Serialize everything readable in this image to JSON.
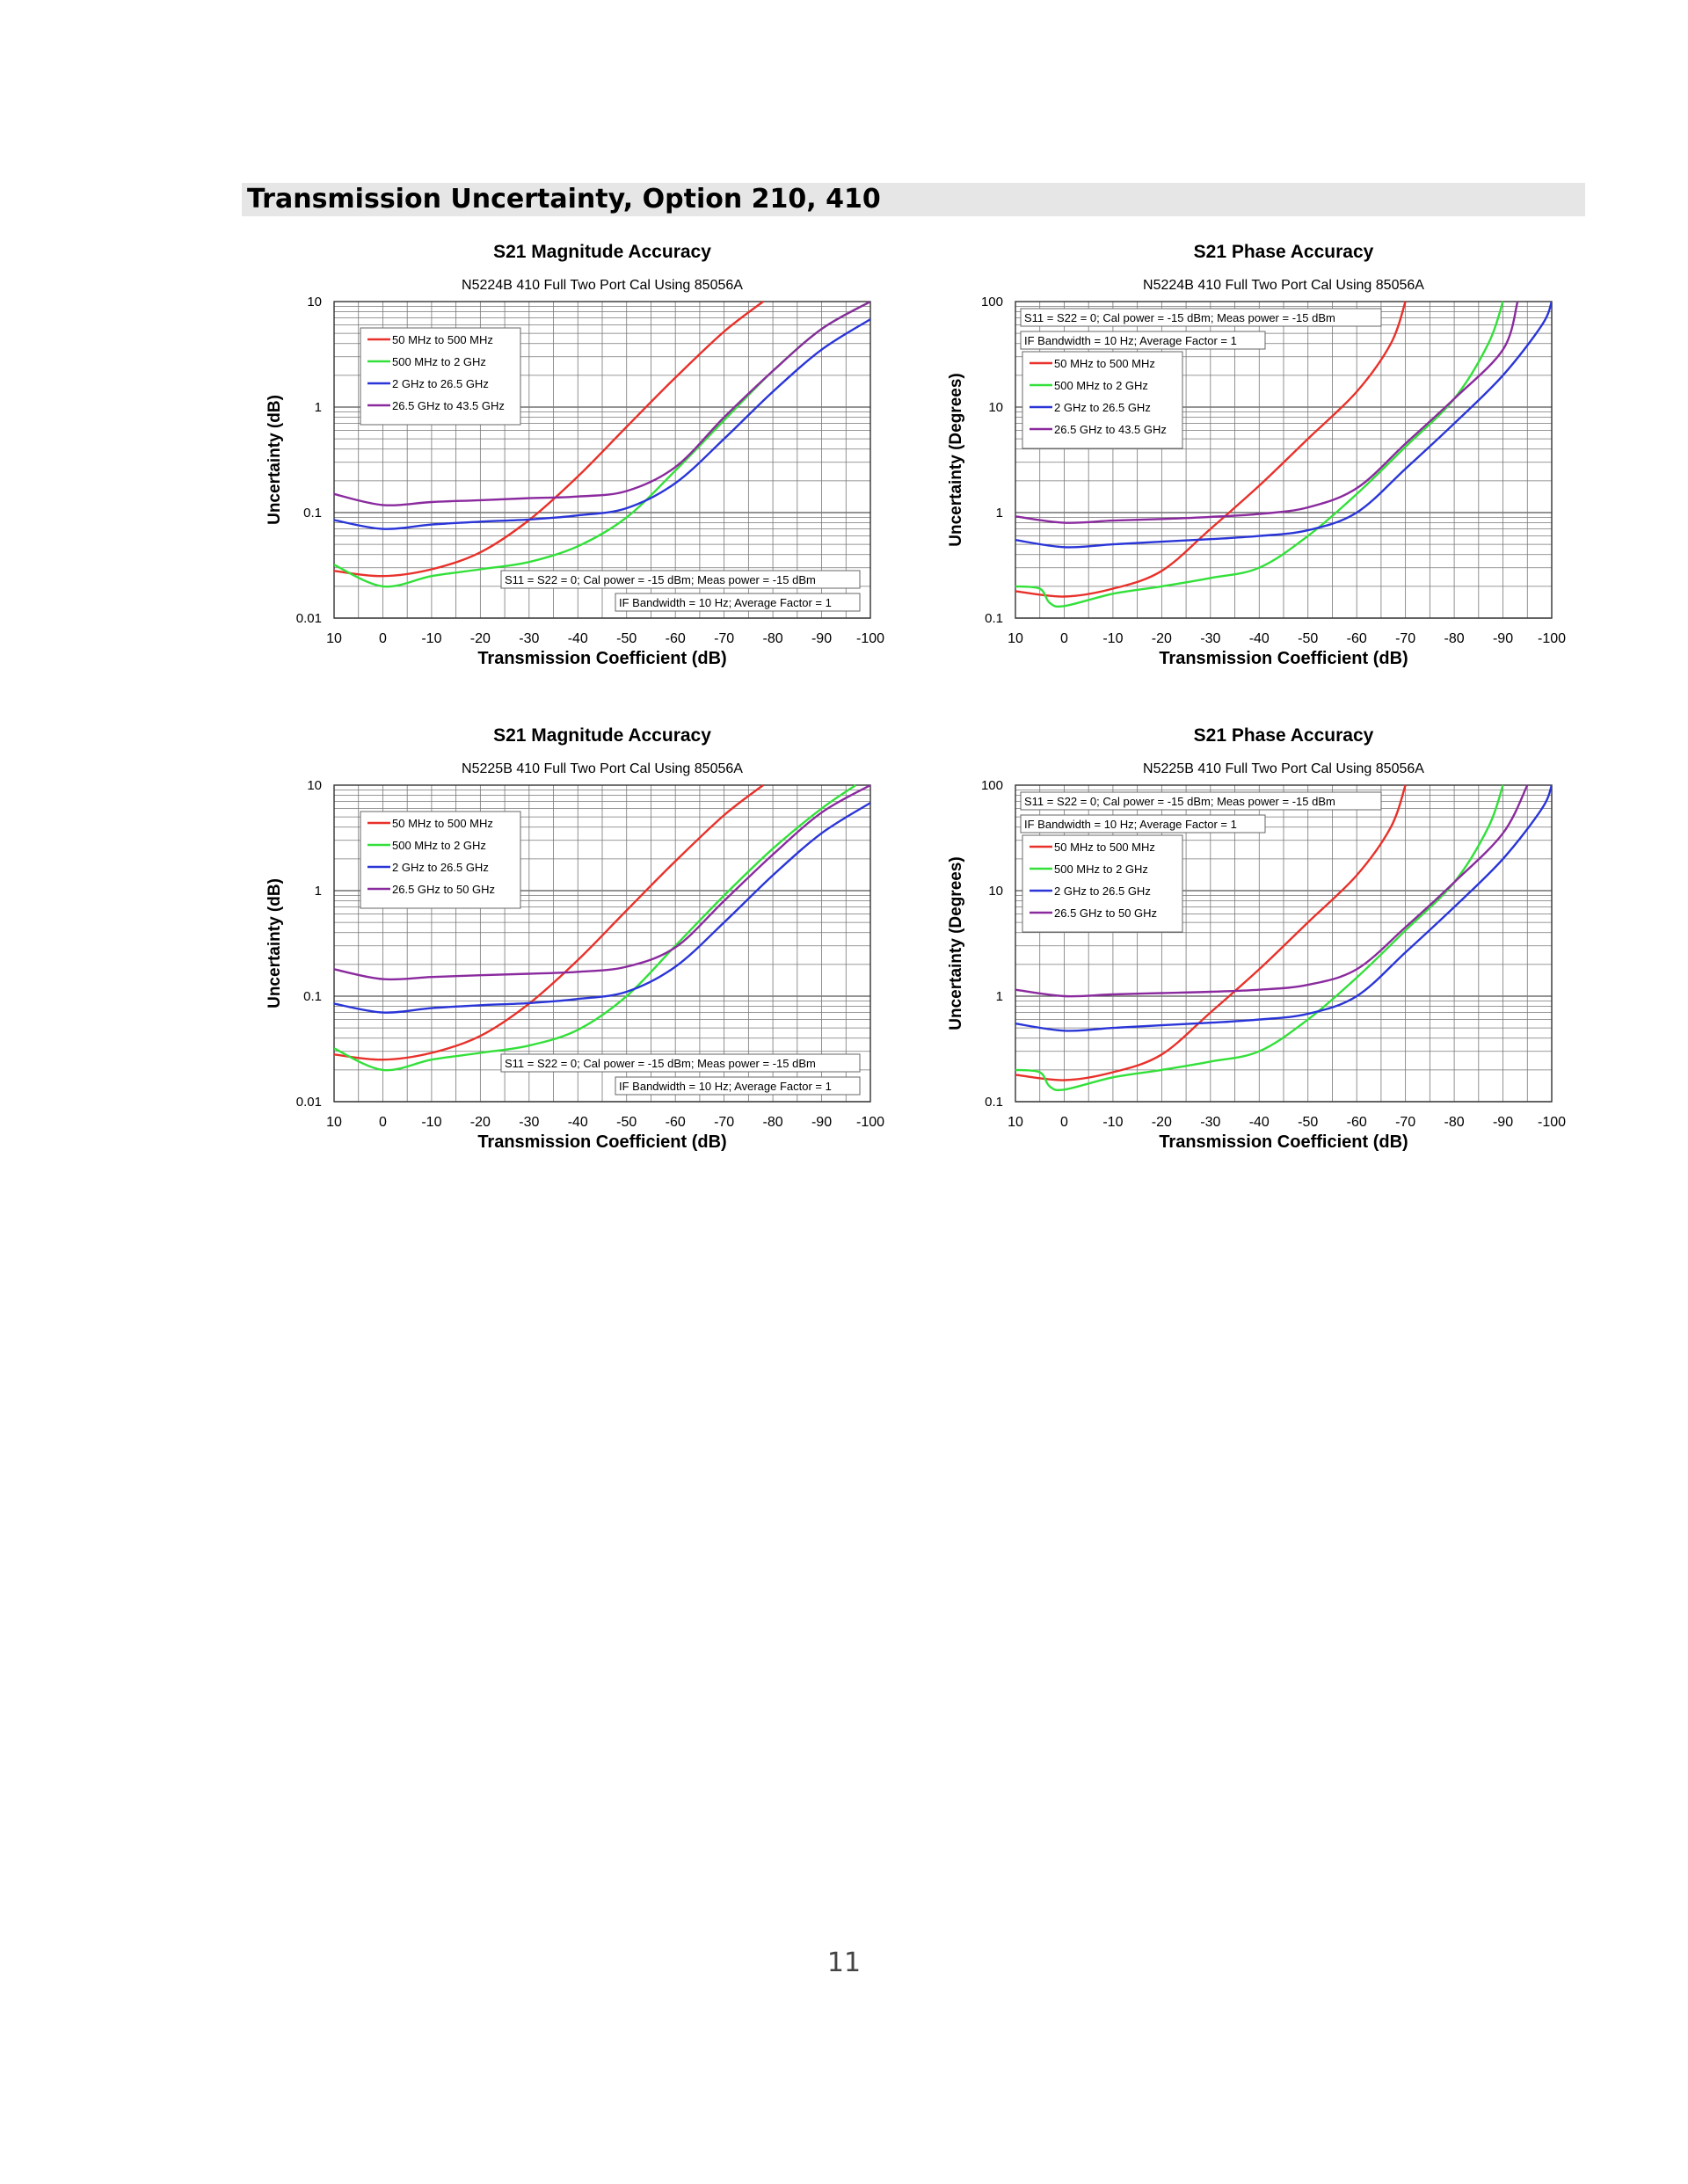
{
  "section_title": "Transmission Uncertainty, Option 210, 410",
  "page_number": "11",
  "chart_data": [
    {
      "type": "line",
      "title": "S21 Magnitude Accuracy",
      "subtitle": "N5224B 410 Full Two Port Cal Using 85056A",
      "xlabel": "Transmission Coefficient (dB)",
      "ylabel": "Uncertainty (dB)",
      "xlim": [
        10,
        -100
      ],
      "ylim": [
        0.01,
        10
      ],
      "yscale": "log",
      "x_ticks": [
        "10",
        "0",
        "-10",
        "-20",
        "-30",
        "-40",
        "-50",
        "-60",
        "-70",
        "-80",
        "-90",
        "-100"
      ],
      "y_ticks": [
        "10",
        "1",
        "0.1",
        "0.01"
      ],
      "grid": true,
      "legend_position": "top-left",
      "notes_position": "bottom-right",
      "notes": [
        "S11 = S22 = 0; Cal power = -15 dBm; Meas power = -15 dBm",
        "IF Bandwidth = 10 Hz; Average Factor = 1"
      ],
      "series": [
        {
          "name": "50 MHz to 500 MHz",
          "color": "#e8312a",
          "points": [
            [
              10,
              0.028
            ],
            [
              0,
              0.025
            ],
            [
              -10,
              0.029
            ],
            [
              -20,
              0.042
            ],
            [
              -30,
              0.085
            ],
            [
              -40,
              0.22
            ],
            [
              -50,
              0.65
            ],
            [
              -60,
              1.9
            ],
            [
              -70,
              5.2
            ],
            [
              -78,
              10
            ]
          ]
        },
        {
          "name": "500 MHz to 2 GHz",
          "color": "#33e03a",
          "points": [
            [
              10,
              0.032
            ],
            [
              0,
              0.02
            ],
            [
              -10,
              0.025
            ],
            [
              -20,
              0.029
            ],
            [
              -30,
              0.034
            ],
            [
              -40,
              0.048
            ],
            [
              -50,
              0.09
            ],
            [
              -60,
              0.25
            ],
            [
              -70,
              0.75
            ],
            [
              -80,
              2.2
            ],
            [
              -90,
              5.5
            ],
            [
              -100,
              10
            ]
          ]
        },
        {
          "name": "2 GHz to 26.5 GHz",
          "color": "#2a35d8",
          "points": [
            [
              10,
              0.085
            ],
            [
              0,
              0.07
            ],
            [
              -10,
              0.077
            ],
            [
              -20,
              0.082
            ],
            [
              -30,
              0.086
            ],
            [
              -40,
              0.094
            ],
            [
              -50,
              0.11
            ],
            [
              -60,
              0.19
            ],
            [
              -70,
              0.5
            ],
            [
              -80,
              1.4
            ],
            [
              -90,
              3.5
            ],
            [
              -100,
              6.8
            ]
          ]
        },
        {
          "name": "26.5 GHz to 43.5 GHz",
          "color": "#8a2a9e",
          "points": [
            [
              10,
              0.15
            ],
            [
              0,
              0.118
            ],
            [
              -10,
              0.126
            ],
            [
              -20,
              0.131
            ],
            [
              -30,
              0.137
            ],
            [
              -40,
              0.142
            ],
            [
              -50,
              0.16
            ],
            [
              -60,
              0.27
            ],
            [
              -70,
              0.8
            ],
            [
              -80,
              2.2
            ],
            [
              -90,
              5.5
            ],
            [
              -100,
              10
            ]
          ]
        }
      ]
    },
    {
      "type": "line",
      "title": "S21 Phase Accuracy",
      "subtitle": "N5224B 410 Full Two Port Cal Using 85056A",
      "xlabel": "Transmission Coefficient (dB)",
      "ylabel": "Uncertainty (Degrees)",
      "xlim": [
        10,
        -100
      ],
      "ylim": [
        0.1,
        100
      ],
      "yscale": "log",
      "x_ticks": [
        "10",
        "0",
        "-10",
        "-20",
        "-30",
        "-40",
        "-50",
        "-60",
        "-70",
        "-80",
        "-90",
        "-100"
      ],
      "y_ticks": [
        "100",
        "10",
        "1",
        "0.1"
      ],
      "grid": true,
      "legend_position": "top-left",
      "notes_position": "top-left",
      "notes": [
        "S11 = S22 = 0; Cal power = -15 dBm; Meas power = -15 dBm",
        "IF Bandwidth = 10 Hz; Average Factor = 1"
      ],
      "series": [
        {
          "name": "50 MHz to 500 MHz",
          "color": "#e8312a",
          "points": [
            [
              10,
              0.18
            ],
            [
              0,
              0.16
            ],
            [
              -10,
              0.19
            ],
            [
              -20,
              0.28
            ],
            [
              -30,
              0.7
            ],
            [
              -40,
              1.8
            ],
            [
              -50,
              5
            ],
            [
              -60,
              14
            ],
            [
              -67,
              40
            ],
            [
              -70,
              100
            ]
          ]
        },
        {
          "name": "500 MHz to 2 GHz",
          "color": "#33e03a",
          "points": [
            [
              10,
              0.2
            ],
            [
              5,
              0.19
            ],
            [
              3,
              0.14
            ],
            [
              0,
              0.13
            ],
            [
              -10,
              0.17
            ],
            [
              -20,
              0.2
            ],
            [
              -30,
              0.24
            ],
            [
              -40,
              0.3
            ],
            [
              -50,
              0.6
            ],
            [
              -60,
              1.5
            ],
            [
              -70,
              4.2
            ],
            [
              -80,
              12
            ],
            [
              -87,
              40
            ],
            [
              -90,
              100
            ]
          ]
        },
        {
          "name": "2 GHz to 26.5 GHz",
          "color": "#2a35d8",
          "points": [
            [
              10,
              0.55
            ],
            [
              0,
              0.47
            ],
            [
              -10,
              0.5
            ],
            [
              -20,
              0.53
            ],
            [
              -30,
              0.56
            ],
            [
              -40,
              0.6
            ],
            [
              -50,
              0.68
            ],
            [
              -60,
              1
            ],
            [
              -70,
              2.6
            ],
            [
              -80,
              7
            ],
            [
              -90,
              20
            ],
            [
              -98,
              60
            ],
            [
              -100,
              100
            ]
          ]
        },
        {
          "name": "26.5 GHz to 43.5 GHz",
          "color": "#8a2a9e",
          "points": [
            [
              10,
              0.92
            ],
            [
              0,
              0.8
            ],
            [
              -10,
              0.84
            ],
            [
              -20,
              0.87
            ],
            [
              -30,
              0.91
            ],
            [
              -40,
              0.97
            ],
            [
              -50,
              1.12
            ],
            [
              -60,
              1.7
            ],
            [
              -70,
              4.5
            ],
            [
              -80,
              12
            ],
            [
              -90,
              35
            ],
            [
              -93,
              100
            ]
          ]
        }
      ]
    },
    {
      "type": "line",
      "title": "S21 Magnitude Accuracy",
      "subtitle": "N5225B 410 Full Two Port Cal Using 85056A",
      "xlabel": "Transmission Coefficient (dB)",
      "ylabel": "Uncertainty (dB)",
      "xlim": [
        10,
        -100
      ],
      "ylim": [
        0.01,
        10
      ],
      "yscale": "log",
      "x_ticks": [
        "10",
        "0",
        "-10",
        "-20",
        "-30",
        "-40",
        "-50",
        "-60",
        "-70",
        "-80",
        "-90",
        "-100"
      ],
      "y_ticks": [
        "10",
        "1",
        "0.1",
        "0.01"
      ],
      "grid": true,
      "legend_position": "top-left",
      "notes_position": "bottom-right",
      "notes": [
        "S11 = S22 = 0; Cal power = -15 dBm; Meas power = -15 dBm",
        "IF Bandwidth = 10 Hz; Average Factor = 1"
      ],
      "series": [
        {
          "name": "50 MHz to 500 MHz",
          "color": "#e8312a",
          "points": [
            [
              10,
              0.028
            ],
            [
              0,
              0.025
            ],
            [
              -10,
              0.029
            ],
            [
              -20,
              0.042
            ],
            [
              -30,
              0.085
            ],
            [
              -40,
              0.22
            ],
            [
              -50,
              0.65
            ],
            [
              -60,
              1.9
            ],
            [
              -70,
              5.2
            ],
            [
              -78,
              10
            ]
          ]
        },
        {
          "name": "500 MHz to 2 GHz",
          "color": "#33e03a",
          "points": [
            [
              10,
              0.032
            ],
            [
              0,
              0.02
            ],
            [
              -10,
              0.025
            ],
            [
              -20,
              0.029
            ],
            [
              -30,
              0.034
            ],
            [
              -40,
              0.048
            ],
            [
              -50,
              0.1
            ],
            [
              -60,
              0.3
            ],
            [
              -70,
              0.9
            ],
            [
              -80,
              2.5
            ],
            [
              -90,
              6
            ],
            [
              -97,
              10
            ]
          ]
        },
        {
          "name": "2 GHz to 26.5 GHz",
          "color": "#2a35d8",
          "points": [
            [
              10,
              0.085
            ],
            [
              0,
              0.07
            ],
            [
              -10,
              0.077
            ],
            [
              -20,
              0.082
            ],
            [
              -30,
              0.086
            ],
            [
              -40,
              0.094
            ],
            [
              -50,
              0.11
            ],
            [
              -60,
              0.19
            ],
            [
              -70,
              0.5
            ],
            [
              -80,
              1.4
            ],
            [
              -90,
              3.5
            ],
            [
              -100,
              6.8
            ]
          ]
        },
        {
          "name": "26.5 GHz to 50 GHz",
          "color": "#8a2a9e",
          "points": [
            [
              10,
              0.18
            ],
            [
              0,
              0.145
            ],
            [
              -10,
              0.152
            ],
            [
              -20,
              0.158
            ],
            [
              -30,
              0.163
            ],
            [
              -40,
              0.17
            ],
            [
              -50,
              0.19
            ],
            [
              -60,
              0.29
            ],
            [
              -70,
              0.8
            ],
            [
              -80,
              2.2
            ],
            [
              -90,
              5.5
            ],
            [
              -100,
              10
            ]
          ]
        }
      ]
    },
    {
      "type": "line",
      "title": "S21 Phase Accuracy",
      "subtitle": "N5225B 410 Full Two Port Cal Using 85056A",
      "xlabel": "Transmission Coefficient (dB)",
      "ylabel": "Uncertainty (Degrees)",
      "xlim": [
        10,
        -100
      ],
      "ylim": [
        0.1,
        100
      ],
      "yscale": "log",
      "x_ticks": [
        "10",
        "0",
        "-10",
        "-20",
        "-30",
        "-40",
        "-50",
        "-60",
        "-70",
        "-80",
        "-90",
        "-100"
      ],
      "y_ticks": [
        "100",
        "10",
        "1",
        "0.1"
      ],
      "grid": true,
      "legend_position": "top-left",
      "notes_position": "top-left",
      "notes": [
        "S11 = S22 = 0; Cal power = -15 dBm; Meas power = -15 dBm",
        "IF Bandwidth = 10 Hz; Average Factor = 1"
      ],
      "series": [
        {
          "name": "50 MHz to 500 MHz",
          "color": "#e8312a",
          "points": [
            [
              10,
              0.18
            ],
            [
              0,
              0.16
            ],
            [
              -10,
              0.19
            ],
            [
              -20,
              0.28
            ],
            [
              -30,
              0.7
            ],
            [
              -40,
              1.8
            ],
            [
              -50,
              5
            ],
            [
              -60,
              14
            ],
            [
              -67,
              40
            ],
            [
              -70,
              100
            ]
          ]
        },
        {
          "name": "500 MHz to 2 GHz",
          "color": "#33e03a",
          "points": [
            [
              10,
              0.2
            ],
            [
              5,
              0.19
            ],
            [
              3,
              0.14
            ],
            [
              0,
              0.13
            ],
            [
              -10,
              0.17
            ],
            [
              -20,
              0.2
            ],
            [
              -30,
              0.24
            ],
            [
              -40,
              0.3
            ],
            [
              -50,
              0.6
            ],
            [
              -60,
              1.5
            ],
            [
              -70,
              4.2
            ],
            [
              -80,
              12
            ],
            [
              -87,
              40
            ],
            [
              -90,
              100
            ]
          ]
        },
        {
          "name": "2 GHz to 26.5 GHz",
          "color": "#2a35d8",
          "points": [
            [
              10,
              0.55
            ],
            [
              0,
              0.47
            ],
            [
              -10,
              0.5
            ],
            [
              -20,
              0.53
            ],
            [
              -30,
              0.56
            ],
            [
              -40,
              0.6
            ],
            [
              -50,
              0.68
            ],
            [
              -60,
              1
            ],
            [
              -70,
              2.6
            ],
            [
              -80,
              7
            ],
            [
              -90,
              20
            ],
            [
              -98,
              60
            ],
            [
              -100,
              100
            ]
          ]
        },
        {
          "name": "26.5 GHz to 50 GHz",
          "color": "#8a2a9e",
          "points": [
            [
              10,
              1.15
            ],
            [
              0,
              1
            ],
            [
              -10,
              1.04
            ],
            [
              -20,
              1.07
            ],
            [
              -30,
              1.1
            ],
            [
              -40,
              1.15
            ],
            [
              -50,
              1.28
            ],
            [
              -60,
              1.8
            ],
            [
              -70,
              4.5
            ],
            [
              -80,
              12
            ],
            [
              -90,
              35
            ],
            [
              -95,
              100
            ]
          ]
        }
      ]
    }
  ]
}
